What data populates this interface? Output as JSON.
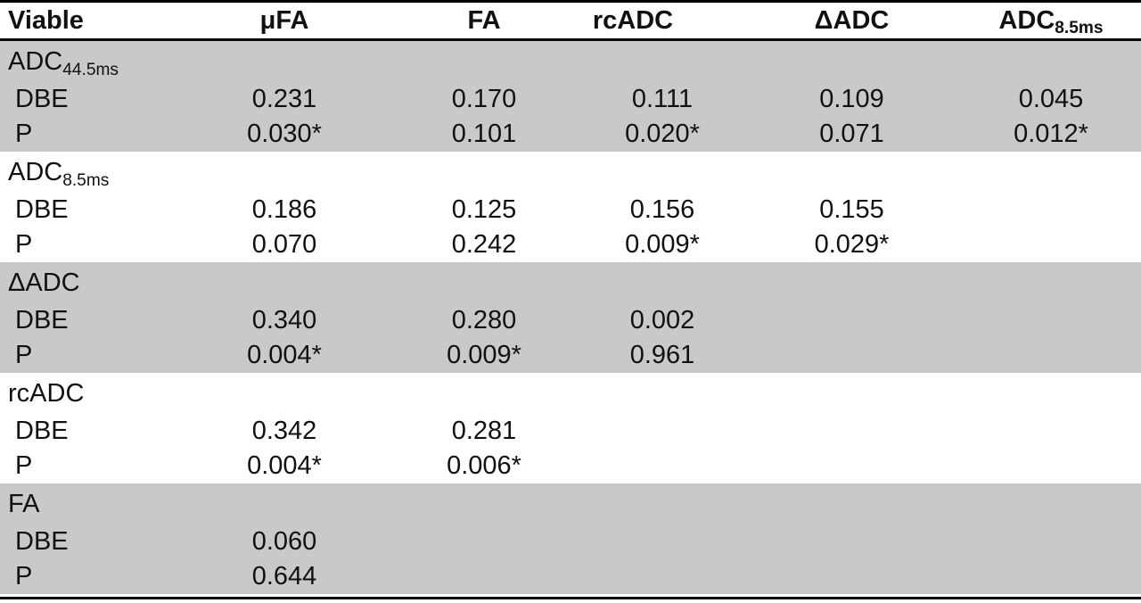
{
  "table": {
    "header": [
      {
        "text": "Viable",
        "sub": ""
      },
      {
        "text": "μFA",
        "sub": ""
      },
      {
        "text": "FA",
        "sub": ""
      },
      {
        "text": "rcADC",
        "sub": ""
      },
      {
        "text": "ΔADC",
        "sub": ""
      },
      {
        "text": "ADC",
        "sub": "8.5ms"
      }
    ],
    "row_labels": {
      "dbe": "DBE",
      "p": "P"
    },
    "groups": [
      {
        "label": "ADC",
        "label_sub": "44.5ms",
        "dbe": [
          "0.231",
          "0.170",
          "0.111",
          "0.109",
          "0.045"
        ],
        "p": [
          "0.030*",
          "0.101",
          "0.020*",
          "0.071",
          "0.012*"
        ]
      },
      {
        "label": "ADC",
        "label_sub": "8.5ms",
        "dbe": [
          "0.186",
          "0.125",
          "0.156",
          "0.155",
          ""
        ],
        "p": [
          "0.070",
          "0.242",
          "0.009*",
          "0.029*",
          ""
        ]
      },
      {
        "label": "ΔADC",
        "label_sub": "",
        "dbe": [
          "0.340",
          "0.280",
          "0.002",
          "",
          ""
        ],
        "p": [
          "0.004*",
          "0.009*",
          "0.961",
          "",
          ""
        ]
      },
      {
        "label": "rcADC",
        "label_sub": "",
        "dbe": [
          "0.342",
          "0.281",
          "",
          "",
          ""
        ],
        "p": [
          "0.004*",
          "0.006*",
          "",
          "",
          ""
        ]
      },
      {
        "label": "FA",
        "label_sub": "",
        "dbe": [
          "0.060",
          "",
          "",
          "",
          ""
        ],
        "p": [
          "0.644",
          "",
          "",
          "",
          ""
        ]
      }
    ],
    "colors": {
      "shaded_row": "#c9c9c9",
      "border": "#000000",
      "text": "#111111",
      "background": "#ffffff"
    }
  }
}
